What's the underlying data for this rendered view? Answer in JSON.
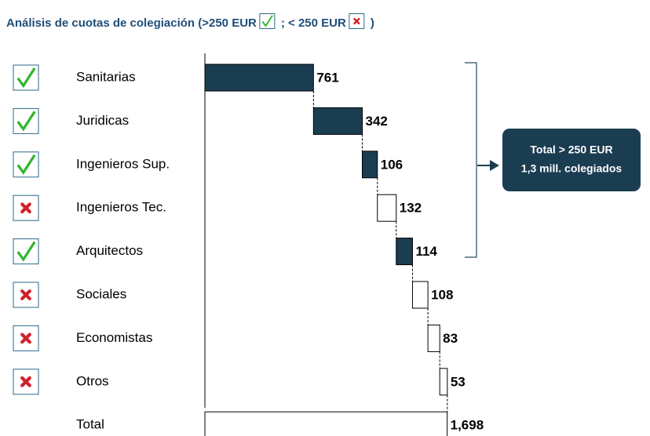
{
  "chart_data": {
    "type": "waterfall",
    "title": [
      "Análisis de cuotas de colegiación  (>250 EUR",
      "; < 250 EUR",
      ")"
    ],
    "categories": [
      "Sanitarias",
      "Juridicas",
      "Ingenieros Sup.",
      "Ingenieros Tec.",
      "Arquitectos",
      "Sociales",
      "Economistas",
      "Otros",
      "Total"
    ],
    "values": [
      761,
      342,
      106,
      132,
      114,
      108,
      83,
      53,
      1698
    ],
    "value_labels": [
      "761",
      "342",
      "106",
      "132",
      "114",
      "108",
      "83",
      "53",
      "1,698"
    ],
    "colors": [
      "#1b3d52",
      "#1b3d52",
      "#1b3d52",
      "#ffffff",
      "#1b3d52",
      "#ffffff",
      "#ffffff",
      "#ffffff",
      "#ffffff"
    ],
    "xlim": [
      0,
      1700
    ],
    "annotation": [
      "Total > 250 EUR",
      "1,3 mill. colegiados"
    ]
  }
}
